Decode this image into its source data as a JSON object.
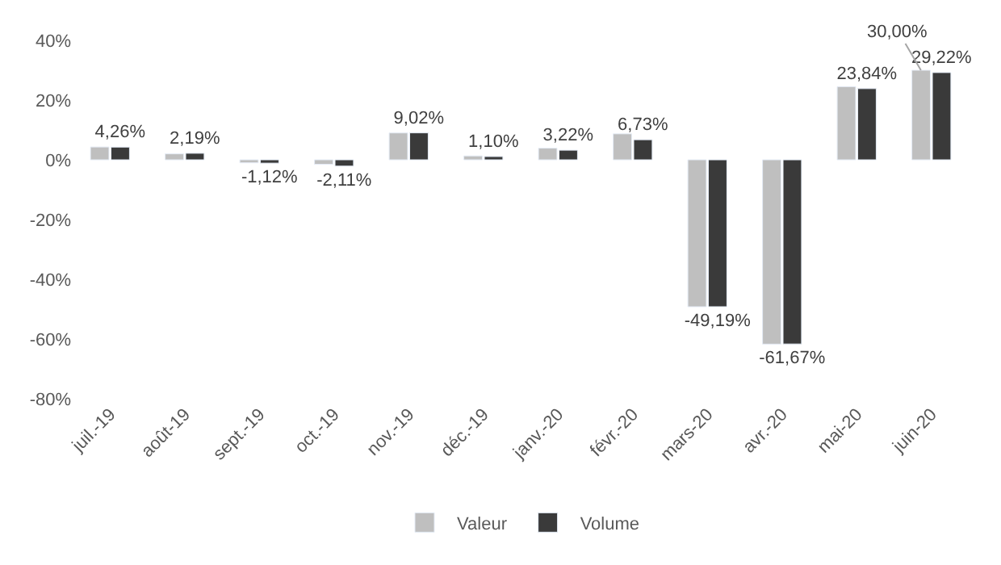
{
  "chart_data": {
    "type": "bar",
    "categories": [
      "juil.-19",
      "août-19",
      "sept.-19",
      "oct.-19",
      "nov.-19",
      "déc.-19",
      "janv.-20",
      "févr.-20",
      "mars-20",
      "avr.-20",
      "mai-20",
      "juin-20"
    ],
    "series": [
      {
        "name": "Valeur",
        "color": "#bfbfbf",
        "values": [
          4.3,
          2.0,
          -1.0,
          -1.5,
          9.0,
          1.3,
          3.9,
          8.7,
          -49.2,
          -61.7,
          24.5,
          30.0
        ],
        "value_labels": [
          null,
          null,
          null,
          null,
          null,
          null,
          null,
          null,
          null,
          null,
          null,
          "30,00%"
        ]
      },
      {
        "name": "Volume",
        "color": "#3a3a3a",
        "values": [
          4.26,
          2.19,
          -1.12,
          -2.11,
          9.02,
          1.1,
          3.22,
          6.73,
          -49.19,
          -61.67,
          23.84,
          29.22
        ],
        "value_labels": [
          "4,26%",
          "2,19%",
          "-1,12%",
          "-2,11%",
          "9,02%",
          "1,10%",
          "3,22%",
          "6,73%",
          "-49,19%",
          "-61,67%",
          "23,84%",
          "29,22%"
        ]
      }
    ],
    "ylim": [
      -80,
      40
    ],
    "yticks": [
      {
        "value": 40,
        "label": "40%"
      },
      {
        "value": 20,
        "label": "20%"
      },
      {
        "value": 0,
        "label": "0%"
      },
      {
        "value": -20,
        "label": "-20%"
      },
      {
        "value": -40,
        "label": "-40%"
      },
      {
        "value": -60,
        "label": "-60%"
      },
      {
        "value": -80,
        "label": "-80%"
      }
    ],
    "grid": false,
    "legend": "bottom"
  }
}
